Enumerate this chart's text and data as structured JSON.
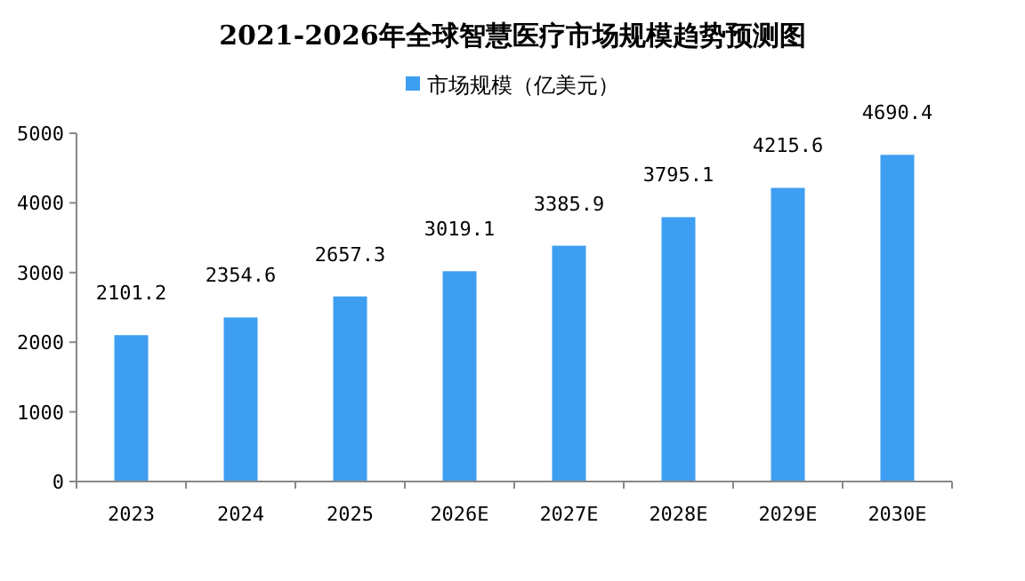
{
  "chart_data": {
    "type": "bar",
    "title": "2021-2026年全球智慧医疗市场规模趋势预测图",
    "categories": [
      "2023",
      "2024",
      "2025",
      "2026E",
      "2027E",
      "2028E",
      "2029E",
      "2030E"
    ],
    "series": [
      {
        "name": "市场规模（亿美元）",
        "color": "#3e9ef2",
        "values": [
          2101.2,
          2354.6,
          2657.3,
          3019.1,
          3385.9,
          3795.1,
          4215.6,
          4690.4
        ]
      }
    ],
    "ylim": [
      0,
      5000
    ],
    "yticks": [
      0,
      1000,
      2000,
      3000,
      4000,
      5000
    ],
    "data_labels": true,
    "grid": false,
    "legend": "top"
  }
}
